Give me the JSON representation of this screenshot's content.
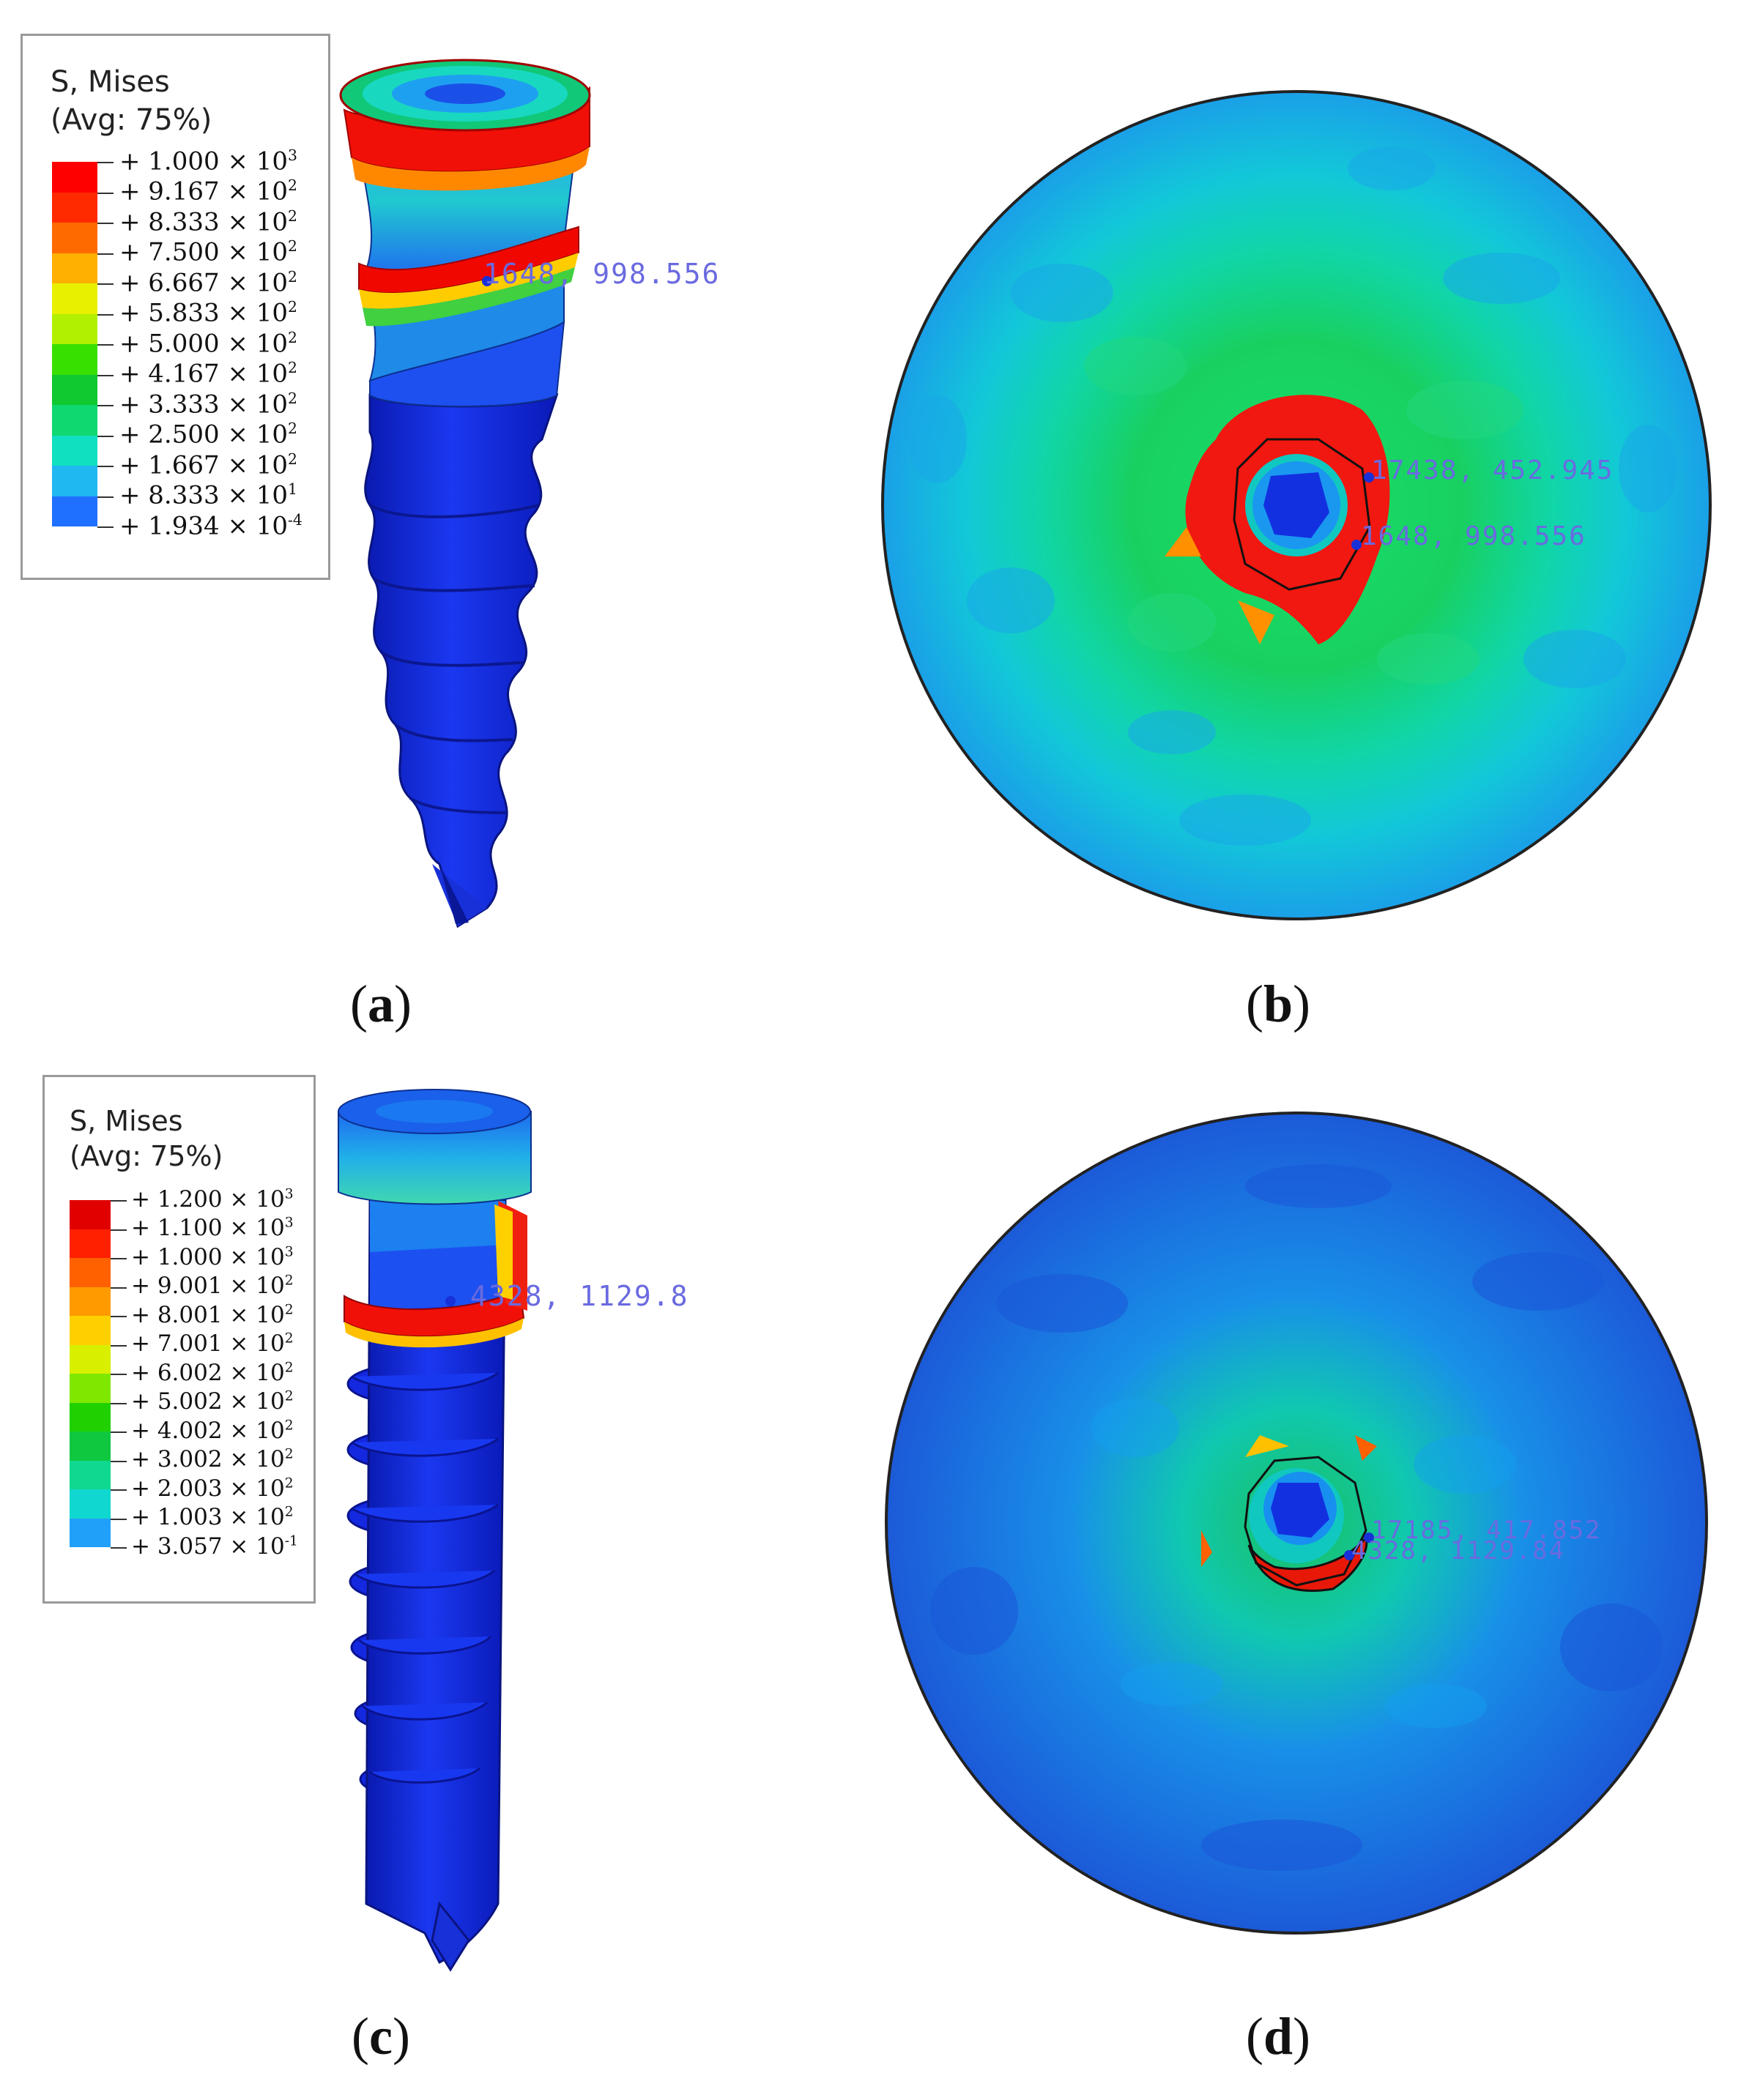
{
  "panels": [
    {
      "id": "a",
      "caption": "a",
      "legend": {
        "title_line1": "S, Mises",
        "title_line2": "(Avg: 75%)",
        "entries": [
          {
            "mant": "+ 1.000 × 10",
            "exp": "3"
          },
          {
            "mant": "+ 9.167 × 10",
            "exp": "2"
          },
          {
            "mant": "+ 8.333 × 10",
            "exp": "2"
          },
          {
            "mant": "+ 7.500 × 10",
            "exp": "2"
          },
          {
            "mant": "+ 6.667 × 10",
            "exp": "2"
          },
          {
            "mant": "+ 5.833 × 10",
            "exp": "2"
          },
          {
            "mant": "+ 5.000 × 10",
            "exp": "2"
          },
          {
            "mant": "+ 4.167 × 10",
            "exp": "2"
          },
          {
            "mant": "+ 3.333 × 10",
            "exp": "2"
          },
          {
            "mant": "+ 2.500 × 10",
            "exp": "2"
          },
          {
            "mant": "+ 1.667 × 10",
            "exp": "2"
          },
          {
            "mant": "+ 8.333 × 10",
            "exp": "1"
          },
          {
            "mant": "+ 1.934 × 10",
            "exp": "-4"
          }
        ],
        "colors": [
          "#ff0000",
          "#ff2a00",
          "#ff6a00",
          "#ffb000",
          "#e8f000",
          "#b0f000",
          "#38e000",
          "#10c830",
          "#10d870",
          "#10e0c0",
          "#20b8f0",
          "#2070ff",
          "#1428e0"
        ]
      },
      "probes": [
        "1648, 998.556"
      ]
    },
    {
      "id": "b",
      "caption": "b",
      "probes": [
        "17438, 452.945",
        "1648, 998.556"
      ]
    },
    {
      "id": "c",
      "caption": "c",
      "legend": {
        "title_line1": "S, Mises",
        "title_line2": "(Avg: 75%)",
        "entries": [
          {
            "mant": "+ 1.200 × 10",
            "exp": "3"
          },
          {
            "mant": "+ 1.100 × 10",
            "exp": "3"
          },
          {
            "mant": "+ 1.000 × 10",
            "exp": "3"
          },
          {
            "mant": "+ 9.001 × 10",
            "exp": "2"
          },
          {
            "mant": "+ 8.001 × 10",
            "exp": "2"
          },
          {
            "mant": "+ 7.001 × 10",
            "exp": "2"
          },
          {
            "mant": "+ 6.002 × 10",
            "exp": "2"
          },
          {
            "mant": "+ 5.002 × 10",
            "exp": "2"
          },
          {
            "mant": "+ 4.002 × 10",
            "exp": "2"
          },
          {
            "mant": "+ 3.002 × 10",
            "exp": "2"
          },
          {
            "mant": "+ 2.003 × 10",
            "exp": "2"
          },
          {
            "mant": "+ 1.003 × 10",
            "exp": "2"
          },
          {
            "mant": "+ 3.057 × 10",
            "exp": "-1"
          }
        ],
        "colors": [
          "#e00000",
          "#ff2000",
          "#ff6000",
          "#ff9a00",
          "#ffd000",
          "#d8f000",
          "#80e800",
          "#20d000",
          "#10c840",
          "#10d890",
          "#10d8d0",
          "#20a0f8",
          "#1860ff"
        ]
      },
      "probes": [
        "4328, 1129.8"
      ]
    },
    {
      "id": "d",
      "caption": "d",
      "probes": [
        "17185, 417.852",
        "4328, 1129.84"
      ]
    }
  ]
}
